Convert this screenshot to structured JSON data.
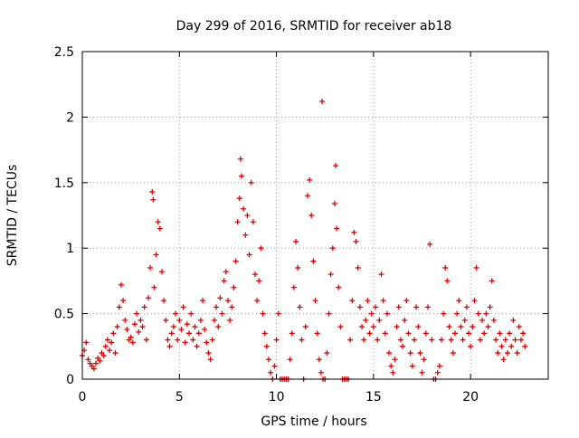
{
  "chart_data": {
    "type": "scatter",
    "title": "Day 299 of 2016, SRMTID for receiver ab18",
    "xlabel": "GPS time / hours",
    "ylabel": "SRMTID / TECUs",
    "xlim": [
      0,
      24
    ],
    "ylim": [
      0,
      2.5
    ],
    "xticks": [
      0,
      5,
      10,
      15,
      20
    ],
    "xtick_labels": [
      "0",
      "5",
      "10",
      "15",
      "20"
    ],
    "yticks": [
      0,
      0.5,
      1,
      1.5,
      2,
      2.5
    ],
    "ytick_labels": [
      "0",
      "0.5",
      "1",
      "1.5",
      "2",
      "2.5"
    ],
    "grid": true,
    "marker": "+",
    "series": [
      {
        "name": "SRMTID",
        "color": "#e00000",
        "points": [
          [
            0.0,
            0.18
          ],
          [
            0.1,
            0.22
          ],
          [
            0.2,
            0.28
          ],
          [
            0.3,
            0.15
          ],
          [
            0.4,
            0.12
          ],
          [
            0.5,
            0.1
          ],
          [
            0.6,
            0.08
          ],
          [
            0.7,
            0.12
          ],
          [
            0.8,
            0.16
          ],
          [
            0.9,
            0.14
          ],
          [
            1.0,
            0.2
          ],
          [
            1.1,
            0.18
          ],
          [
            1.2,
            0.25
          ],
          [
            1.3,
            0.3
          ],
          [
            1.4,
            0.22
          ],
          [
            1.5,
            0.28
          ],
          [
            1.6,
            0.35
          ],
          [
            1.7,
            0.2
          ],
          [
            1.8,
            0.4
          ],
          [
            1.9,
            0.55
          ],
          [
            2.0,
            0.72
          ],
          [
            2.1,
            0.6
          ],
          [
            2.2,
            0.45
          ],
          [
            2.3,
            0.38
          ],
          [
            2.4,
            0.3
          ],
          [
            2.5,
            0.32
          ],
          [
            2.6,
            0.28
          ],
          [
            2.7,
            0.42
          ],
          [
            2.8,
            0.5
          ],
          [
            2.9,
            0.36
          ],
          [
            3.0,
            0.45
          ],
          [
            3.1,
            0.4
          ],
          [
            3.2,
            0.55
          ],
          [
            3.3,
            0.3
          ],
          [
            3.4,
            0.62
          ],
          [
            3.5,
            0.85
          ],
          [
            3.6,
            1.43
          ],
          [
            3.65,
            1.37
          ],
          [
            3.7,
            0.7
          ],
          [
            3.8,
            0.95
          ],
          [
            3.9,
            1.2
          ],
          [
            4.0,
            1.15
          ],
          [
            4.1,
            0.82
          ],
          [
            4.2,
            0.6
          ],
          [
            4.3,
            0.45
          ],
          [
            4.4,
            0.3
          ],
          [
            4.5,
            0.25
          ],
          [
            4.6,
            0.35
          ],
          [
            4.7,
            0.4
          ],
          [
            4.8,
            0.5
          ],
          [
            4.9,
            0.3
          ],
          [
            5.0,
            0.45
          ],
          [
            5.1,
            0.38
          ],
          [
            5.2,
            0.55
          ],
          [
            5.3,
            0.28
          ],
          [
            5.4,
            0.42
          ],
          [
            5.5,
            0.35
          ],
          [
            5.6,
            0.5
          ],
          [
            5.7,
            0.3
          ],
          [
            5.8,
            0.4
          ],
          [
            5.9,
            0.25
          ],
          [
            6.0,
            0.35
          ],
          [
            6.1,
            0.45
          ],
          [
            6.2,
            0.6
          ],
          [
            6.3,
            0.38
          ],
          [
            6.4,
            0.28
          ],
          [
            6.5,
            0.2
          ],
          [
            6.6,
            0.15
          ],
          [
            6.7,
            0.3
          ],
          [
            6.8,
            0.45
          ],
          [
            6.9,
            0.55
          ],
          [
            7.0,
            0.4
          ],
          [
            7.1,
            0.62
          ],
          [
            7.2,
            0.5
          ],
          [
            7.3,
            0.75
          ],
          [
            7.4,
            0.82
          ],
          [
            7.5,
            0.6
          ],
          [
            7.6,
            0.45
          ],
          [
            7.7,
            0.55
          ],
          [
            7.8,
            0.7
          ],
          [
            7.9,
            0.9
          ],
          [
            8.0,
            1.2
          ],
          [
            8.1,
            1.38
          ],
          [
            8.15,
            1.68
          ],
          [
            8.2,
            1.55
          ],
          [
            8.3,
            1.3
          ],
          [
            8.4,
            1.1
          ],
          [
            8.5,
            1.25
          ],
          [
            8.6,
            0.95
          ],
          [
            8.7,
            1.5
          ],
          [
            8.8,
            1.2
          ],
          [
            8.9,
            0.8
          ],
          [
            9.0,
            0.6
          ],
          [
            9.1,
            0.75
          ],
          [
            9.2,
            1.0
          ],
          [
            9.3,
            0.5
          ],
          [
            9.4,
            0.35
          ],
          [
            9.5,
            0.25
          ],
          [
            9.6,
            0.15
          ],
          [
            9.7,
            0.05
          ],
          [
            9.8,
            0.0
          ],
          [
            9.9,
            0.1
          ],
          [
            10.0,
            0.3
          ],
          [
            10.1,
            0.5
          ],
          [
            10.2,
            0.0
          ],
          [
            10.3,
            0.0
          ],
          [
            10.4,
            0.0
          ],
          [
            10.5,
            0.0
          ],
          [
            10.6,
            0.0
          ],
          [
            10.7,
            0.15
          ],
          [
            10.8,
            0.35
          ],
          [
            10.9,
            0.7
          ],
          [
            11.0,
            1.05
          ],
          [
            11.1,
            0.85
          ],
          [
            11.2,
            0.55
          ],
          [
            11.3,
            0.3
          ],
          [
            11.4,
            0.0
          ],
          [
            11.5,
            0.4
          ],
          [
            11.6,
            1.4
          ],
          [
            11.7,
            1.52
          ],
          [
            11.8,
            1.25
          ],
          [
            11.9,
            0.9
          ],
          [
            12.0,
            0.6
          ],
          [
            12.1,
            0.35
          ],
          [
            12.2,
            0.15
          ],
          [
            12.3,
            0.05
          ],
          [
            12.35,
            2.12
          ],
          [
            12.4,
            0.0
          ],
          [
            12.5,
            0.0
          ],
          [
            12.6,
            0.2
          ],
          [
            12.7,
            0.5
          ],
          [
            12.8,
            0.8
          ],
          [
            12.9,
            1.0
          ],
          [
            13.0,
            1.34
          ],
          [
            13.05,
            1.63
          ],
          [
            13.1,
            1.15
          ],
          [
            13.2,
            0.7
          ],
          [
            13.3,
            0.4
          ],
          [
            13.4,
            0.0
          ],
          [
            13.5,
            0.0
          ],
          [
            13.6,
            0.0
          ],
          [
            13.7,
            0.0
          ],
          [
            13.8,
            0.3
          ],
          [
            13.9,
            0.6
          ],
          [
            14.0,
            1.12
          ],
          [
            14.1,
            1.05
          ],
          [
            14.2,
            0.85
          ],
          [
            14.3,
            0.55
          ],
          [
            14.4,
            0.4
          ],
          [
            14.5,
            0.3
          ],
          [
            14.6,
            0.45
          ],
          [
            14.7,
            0.6
          ],
          [
            14.8,
            0.35
          ],
          [
            14.9,
            0.5
          ],
          [
            15.0,
            0.4
          ],
          [
            15.1,
            0.55
          ],
          [
            15.2,
            0.3
          ],
          [
            15.3,
            0.45
          ],
          [
            15.4,
            0.8
          ],
          [
            15.5,
            0.6
          ],
          [
            15.6,
            0.35
          ],
          [
            15.7,
            0.5
          ],
          [
            15.8,
            0.2
          ],
          [
            15.9,
            0.1
          ],
          [
            16.0,
            0.05
          ],
          [
            16.1,
            0.15
          ],
          [
            16.2,
            0.4
          ],
          [
            16.3,
            0.55
          ],
          [
            16.4,
            0.3
          ],
          [
            16.5,
            0.25
          ],
          [
            16.6,
            0.45
          ],
          [
            16.7,
            0.6
          ],
          [
            16.8,
            0.35
          ],
          [
            16.9,
            0.2
          ],
          [
            17.0,
            0.1
          ],
          [
            17.1,
            0.3
          ],
          [
            17.2,
            0.55
          ],
          [
            17.3,
            0.4
          ],
          [
            17.4,
            0.2
          ],
          [
            17.5,
            0.05
          ],
          [
            17.6,
            0.15
          ],
          [
            17.7,
            0.35
          ],
          [
            17.8,
            0.55
          ],
          [
            17.9,
            1.03
          ],
          [
            18.0,
            0.3
          ],
          [
            18.1,
            0.0
          ],
          [
            18.2,
            0.0
          ],
          [
            18.3,
            0.05
          ],
          [
            18.4,
            0.1
          ],
          [
            18.5,
            0.3
          ],
          [
            18.6,
            0.5
          ],
          [
            18.7,
            0.85
          ],
          [
            18.8,
            0.75
          ],
          [
            18.9,
            0.4
          ],
          [
            19.0,
            0.3
          ],
          [
            19.1,
            0.2
          ],
          [
            19.2,
            0.35
          ],
          [
            19.3,
            0.5
          ],
          [
            19.4,
            0.6
          ],
          [
            19.5,
            0.4
          ],
          [
            19.6,
            0.3
          ],
          [
            19.7,
            0.45
          ],
          [
            19.8,
            0.55
          ],
          [
            19.9,
            0.35
          ],
          [
            20.0,
            0.25
          ],
          [
            20.1,
            0.4
          ],
          [
            20.2,
            0.6
          ],
          [
            20.3,
            0.85
          ],
          [
            20.4,
            0.5
          ],
          [
            20.5,
            0.3
          ],
          [
            20.6,
            0.45
          ],
          [
            20.7,
            0.35
          ],
          [
            20.8,
            0.5
          ],
          [
            20.9,
            0.4
          ],
          [
            21.0,
            0.55
          ],
          [
            21.1,
            0.75
          ],
          [
            21.2,
            0.45
          ],
          [
            21.3,
            0.3
          ],
          [
            21.4,
            0.2
          ],
          [
            21.5,
            0.35
          ],
          [
            21.6,
            0.25
          ],
          [
            21.7,
            0.15
          ],
          [
            21.8,
            0.3
          ],
          [
            21.9,
            0.2
          ],
          [
            22.0,
            0.35
          ],
          [
            22.1,
            0.25
          ],
          [
            22.2,
            0.45
          ],
          [
            22.3,
            0.3
          ],
          [
            22.4,
            0.2
          ],
          [
            22.5,
            0.4
          ],
          [
            22.6,
            0.3
          ],
          [
            22.7,
            0.35
          ],
          [
            22.8,
            0.25
          ]
        ]
      }
    ]
  }
}
